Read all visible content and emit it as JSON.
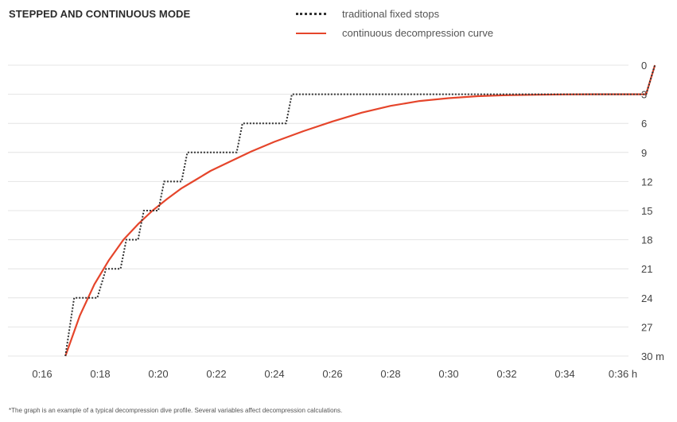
{
  "chart_data": {
    "type": "line",
    "title": "STEPPED AND CONTINUOUS MODE",
    "xlabel": "",
    "ylabel": "",
    "x_unit": "h",
    "y_unit": "m",
    "x_ticks": [
      "0:16",
      "0:18",
      "0:20",
      "0:22",
      "0:24",
      "0:26",
      "0:28",
      "0:30",
      "0:32",
      "0:34",
      "0:36"
    ],
    "x_range_minutes": [
      16,
      37.1
    ],
    "y_ticks": [
      0,
      3,
      6,
      9,
      12,
      15,
      18,
      21,
      24,
      27,
      30
    ],
    "ylim": [
      30,
      0
    ],
    "grid": "horizontal",
    "legend_position": "top",
    "series": [
      {
        "name": "traditional fixed stops",
        "style": "dotted",
        "color": "#333333",
        "x_minutes": [
          16.8,
          17.1,
          17.4,
          17.9,
          18.2,
          18.7,
          18.9,
          19.3,
          19.5,
          20.0,
          20.2,
          20.8,
          21.0,
          21.6,
          21.8,
          22.7,
          22.9,
          24.4,
          24.6,
          26.9,
          27.1,
          36.8,
          37.1
        ],
        "depth_m": [
          30,
          24,
          24,
          24,
          21,
          21,
          18,
          18,
          15,
          15,
          12,
          12,
          9,
          9,
          9,
          9,
          6,
          6,
          3,
          3,
          3,
          3,
          0
        ]
      },
      {
        "name": "continuous decompression curve",
        "style": "solid",
        "color": "#e5452b",
        "x_minutes": [
          16.8,
          17.3,
          17.8,
          18.3,
          18.8,
          19.3,
          19.8,
          20.3,
          20.8,
          21.3,
          21.8,
          22.5,
          23.2,
          24.0,
          25.0,
          26.0,
          27.0,
          28.0,
          29.0,
          30.0,
          31.0,
          32.0,
          33.0,
          34.0,
          35.0,
          36.0,
          36.8,
          37.1
        ],
        "depth_m": [
          30.0,
          25.8,
          22.6,
          20.1,
          18.0,
          16.4,
          15.0,
          13.8,
          12.7,
          11.8,
          10.9,
          9.9,
          8.9,
          7.9,
          6.8,
          5.8,
          4.9,
          4.2,
          3.7,
          3.4,
          3.2,
          3.1,
          3.05,
          3.02,
          3.0,
          3.0,
          3.0,
          0
        ]
      }
    ]
  },
  "footnote": "*The graph is an example of a typical decompression dive profile. Several variables affect decompression calculations."
}
